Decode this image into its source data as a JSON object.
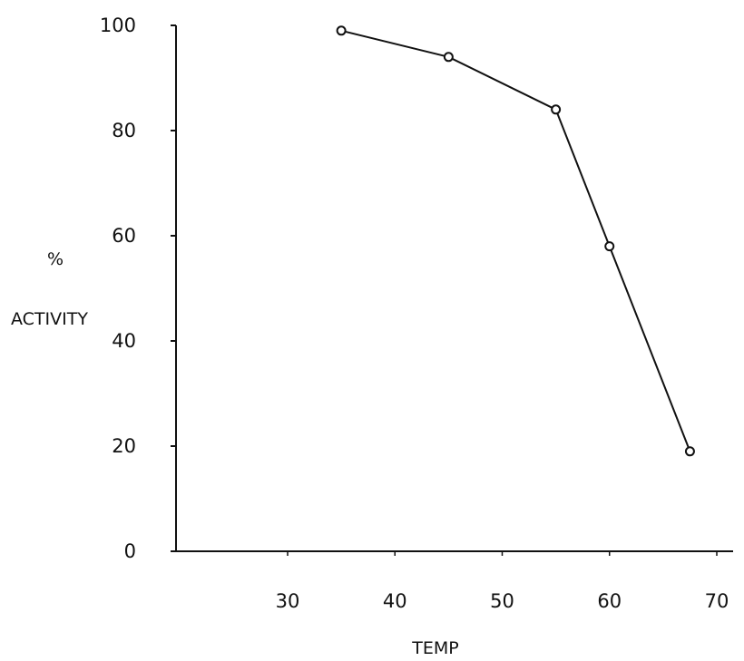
{
  "chart_data": {
    "type": "line",
    "xlabel": "TEMP",
    "ylabel_line1": "%",
    "ylabel_line2": "ACTIVITY",
    "xlim": [
      20,
      70
    ],
    "ylim": [
      0,
      100
    ],
    "x_ticks": [
      30,
      40,
      50,
      60,
      70
    ],
    "y_ticks": [
      0,
      20,
      40,
      60,
      80,
      100
    ],
    "grid": false,
    "marker": "open-circle",
    "series": [
      {
        "x": [
          35,
          45,
          55,
          60,
          67.5
        ],
        "y": [
          99,
          94,
          84,
          58,
          19
        ]
      }
    ]
  }
}
